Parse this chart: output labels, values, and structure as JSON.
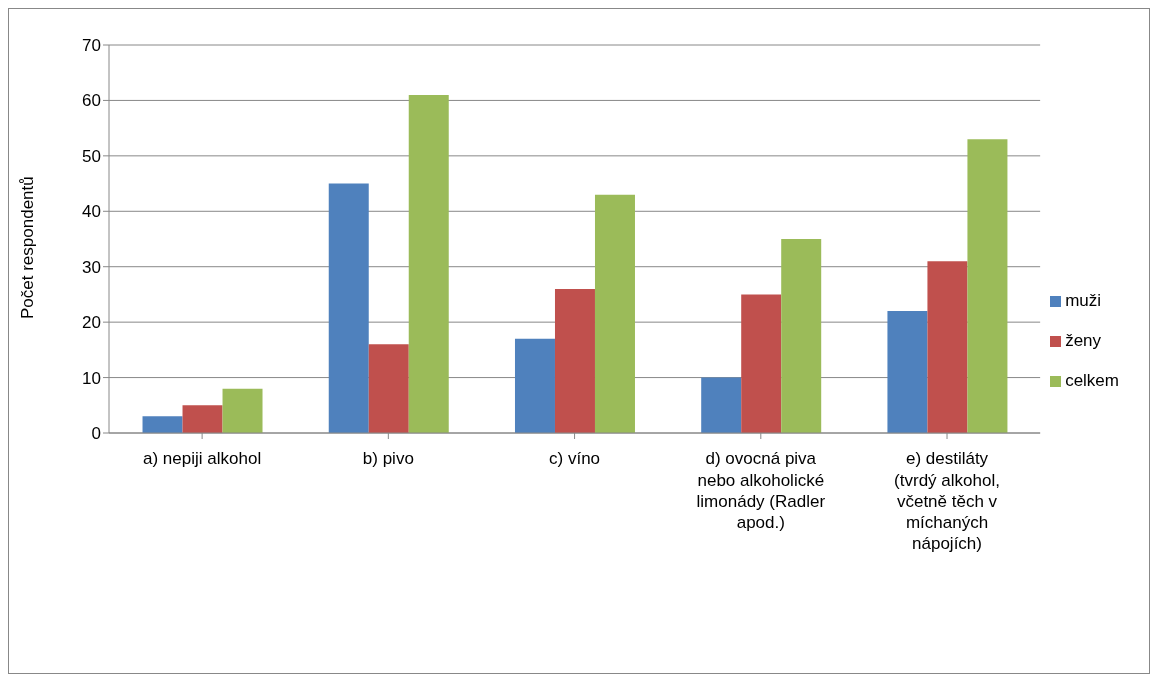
{
  "chart_data": {
    "type": "bar",
    "ylabel": "Počet respondentů",
    "categories": [
      "a) nepiji alkohol",
      "b) pivo",
      "c) víno",
      "d) ovocná piva nebo alkoholické limonády (Radler apod.)",
      "e) destiláty (tvrdý alkohol, včetně těch v míchaných nápojích)"
    ],
    "series": [
      {
        "name": "muži",
        "color": "#4f81bd",
        "values": [
          3,
          45,
          17,
          10,
          22
        ]
      },
      {
        "name": "ženy",
        "color": "#c0504d",
        "values": [
          5,
          16,
          26,
          25,
          31
        ]
      },
      {
        "name": "celkem",
        "color": "#9bbb59",
        "values": [
          8,
          61,
          43,
          35,
          53
        ]
      }
    ],
    "ylim": [
      0,
      70
    ],
    "yticks": [
      0,
      10,
      20,
      30,
      40,
      50,
      60,
      70
    ],
    "grid": "y",
    "legend": "right"
  }
}
